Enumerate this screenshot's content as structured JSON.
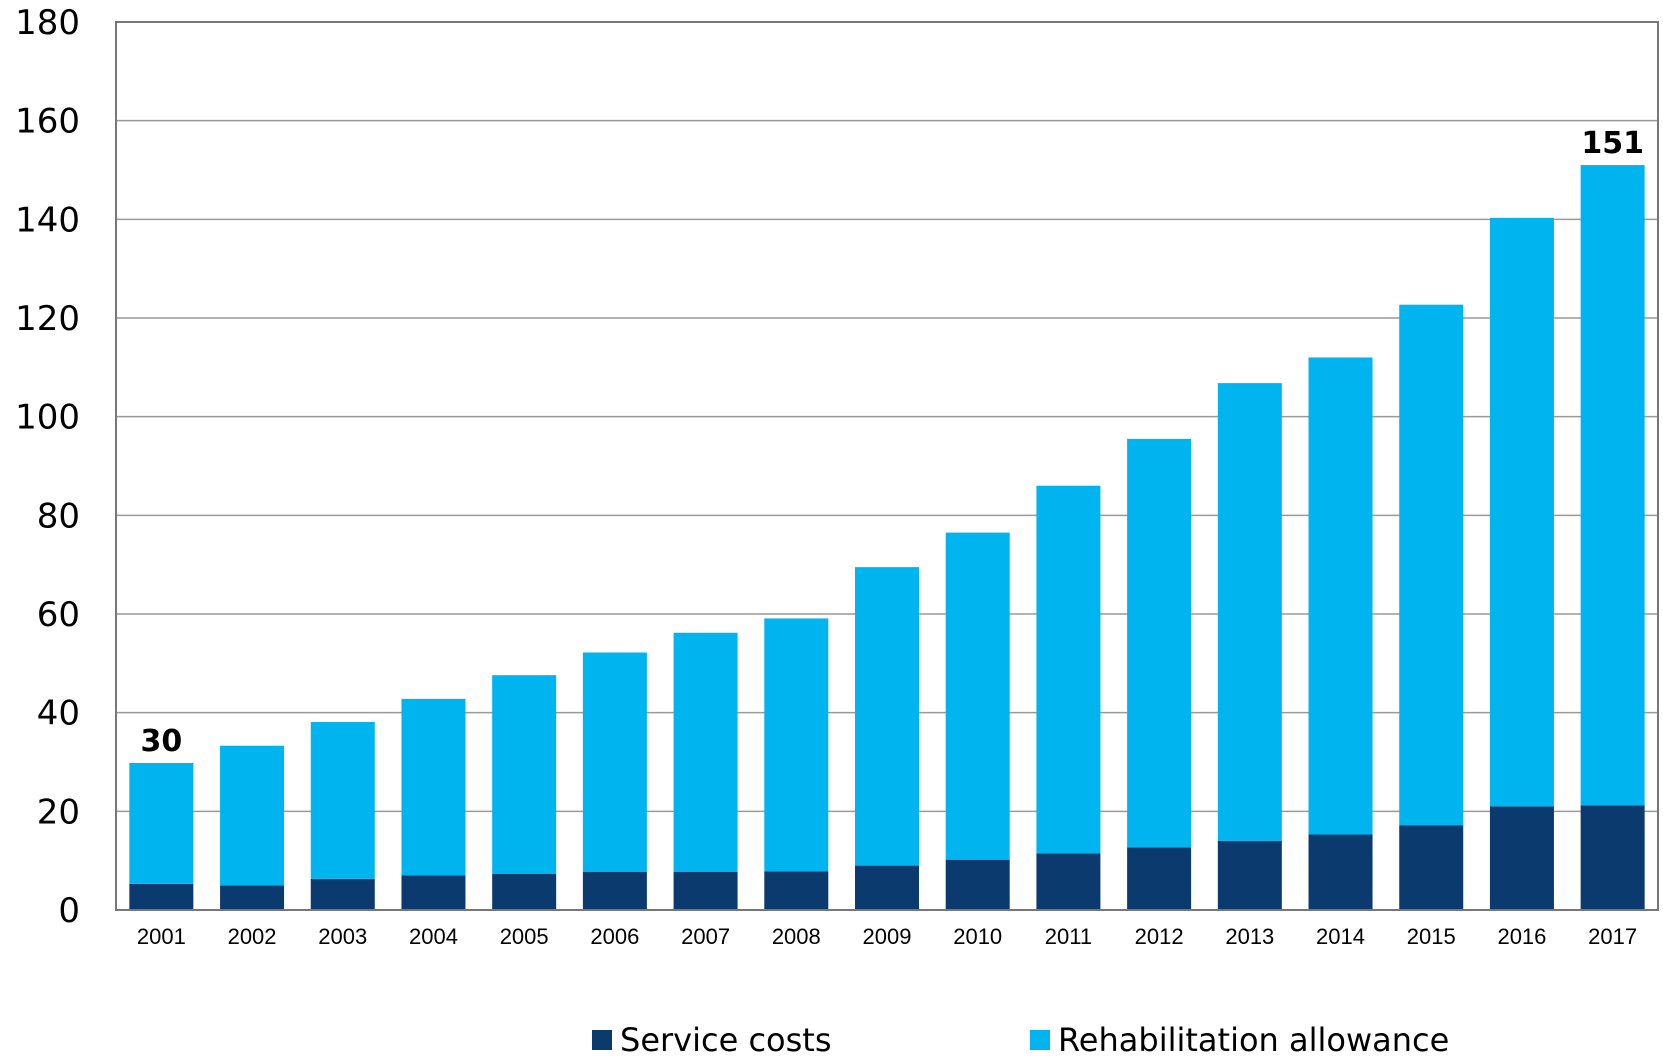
{
  "chart_data": {
    "type": "bar",
    "stacked": true,
    "categories": [
      "2001",
      "2002",
      "2003",
      "2004",
      "2005",
      "2006",
      "2007",
      "2008",
      "2009",
      "2010",
      "2011",
      "2012",
      "2013",
      "2014",
      "2015",
      "2016",
      "2017"
    ],
    "series": [
      {
        "name": "Service costs",
        "color": "#0a3a6e",
        "values": [
          5.3,
          5.0,
          6.3,
          7.0,
          7.3,
          7.7,
          7.7,
          7.8,
          9.0,
          10.2,
          11.5,
          12.7,
          14.0,
          15.3,
          17.2,
          21.0,
          21.2
        ]
      },
      {
        "name": "Rehabilitation allowance",
        "color": "#00b4f0",
        "values": [
          24.5,
          28.3,
          31.8,
          35.8,
          40.3,
          44.5,
          48.5,
          51.3,
          60.5,
          66.3,
          74.5,
          82.8,
          92.8,
          96.7,
          105.5,
          119.3,
          129.8
        ]
      }
    ],
    "ylim": [
      0,
      180
    ],
    "yticks": [
      0,
      20,
      40,
      60,
      80,
      100,
      120,
      140,
      160,
      180
    ],
    "grid": true,
    "legend_position": "bottom",
    "annotations": [
      {
        "category": "2001",
        "text": "30"
      },
      {
        "category": "2017",
        "text": "151"
      }
    ]
  }
}
